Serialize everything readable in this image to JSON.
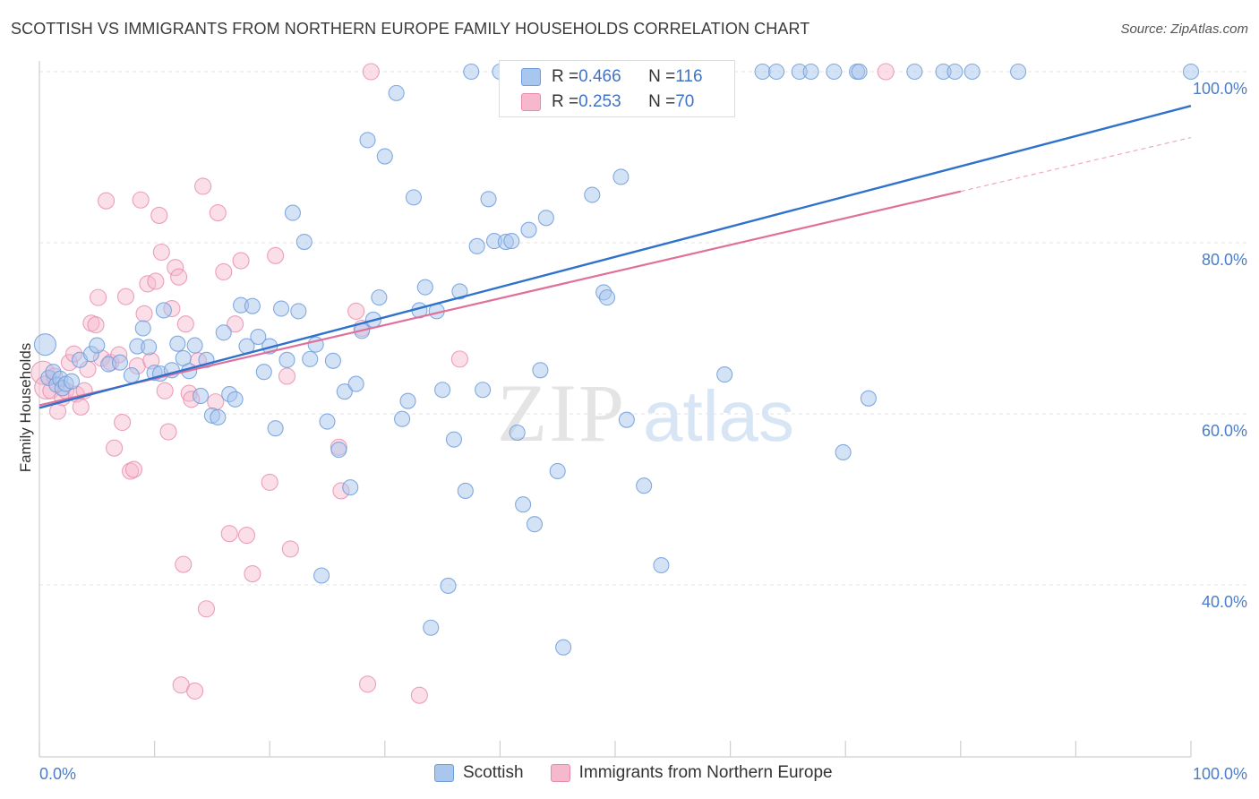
{
  "title": "SCOTTISH VS IMMIGRANTS FROM NORTHERN EUROPE FAMILY HOUSEHOLDS CORRELATION CHART",
  "source": "Source: ZipAtlas.com",
  "watermark": {
    "zip": "ZIP",
    "atlas": "atlas"
  },
  "legend_top": {
    "scottish": {
      "r_label": "R = ",
      "r_value": "0.466",
      "n_label": "N = ",
      "n_value": "116"
    },
    "immigrants": {
      "r_label": "R = ",
      "r_value": "0.253",
      "n_label": "N = ",
      "n_value": "70"
    }
  },
  "legend_bottom": {
    "scottish": "Scottish",
    "immigrants": "Immigrants from Northern Europe"
  },
  "colors": {
    "scottish_fill": "#a9c6ee",
    "scottish_edge": "#6f9ddc",
    "scottish_line": "#2e72cc",
    "immigrants_fill": "#f6b8cd",
    "immigrants_edge": "#e98aab",
    "immigrants_line": "#e0709a",
    "tick_text": "#4a7cc9",
    "grid": "#e3e3e3"
  },
  "chart_data": {
    "type": "scatter",
    "ylabel": "Family Households",
    "xlabel": "",
    "x_tick_labels": [
      "0.0%",
      "100.0%"
    ],
    "y_tick_labels": [
      "40.0%",
      "60.0%",
      "80.0%",
      "100.0%"
    ],
    "y_ticks": [
      40,
      60,
      80,
      100
    ],
    "xlim": [
      0,
      100
    ],
    "ylim": [
      20,
      101
    ],
    "grid": true,
    "legend_placement": "top-center",
    "series": [
      {
        "name": "Scottish",
        "trend": {
          "x": [
            0,
            100
          ],
          "y": [
            60.7,
            96.0
          ]
        },
        "points": [
          [
            0.5,
            68.1
          ],
          [
            0.8,
            64.2
          ],
          [
            1.2,
            64.9
          ],
          [
            1.5,
            63.4
          ],
          [
            1.8,
            64.1
          ],
          [
            2.0,
            63.0
          ],
          [
            2.3,
            63.5
          ],
          [
            2.8,
            63.8
          ],
          [
            3.5,
            66.3
          ],
          [
            4.5,
            67.0
          ],
          [
            5.0,
            68.0
          ],
          [
            6.0,
            65.8
          ],
          [
            7.0,
            66.0
          ],
          [
            8.0,
            64.5
          ],
          [
            8.5,
            67.9
          ],
          [
            9.0,
            70.0
          ],
          [
            9.5,
            67.8
          ],
          [
            10.0,
            64.8
          ],
          [
            10.5,
            64.7
          ],
          [
            10.8,
            72.1
          ],
          [
            11.5,
            65.1
          ],
          [
            12.0,
            68.2
          ],
          [
            12.5,
            66.5
          ],
          [
            13.0,
            65.0
          ],
          [
            13.5,
            68.0
          ],
          [
            14.0,
            62.1
          ],
          [
            14.5,
            66.3
          ],
          [
            15.0,
            59.8
          ],
          [
            15.5,
            59.6
          ],
          [
            16.0,
            69.5
          ],
          [
            16.5,
            62.3
          ],
          [
            17.0,
            61.7
          ],
          [
            17.5,
            72.7
          ],
          [
            18.0,
            67.9
          ],
          [
            18.5,
            72.6
          ],
          [
            19.0,
            69.0
          ],
          [
            19.5,
            64.9
          ],
          [
            20.0,
            67.9
          ],
          [
            20.5,
            58.3
          ],
          [
            21.0,
            72.3
          ],
          [
            21.5,
            66.3
          ],
          [
            22.0,
            83.5
          ],
          [
            22.5,
            72.0
          ],
          [
            23.0,
            80.1
          ],
          [
            23.5,
            66.4
          ],
          [
            24.0,
            68.1
          ],
          [
            24.5,
            41.1
          ],
          [
            25.0,
            59.1
          ],
          [
            25.5,
            66.2
          ],
          [
            26.0,
            55.8
          ],
          [
            26.5,
            62.6
          ],
          [
            27.0,
            51.4
          ],
          [
            27.5,
            63.5
          ],
          [
            28.0,
            69.7
          ],
          [
            28.5,
            92.0
          ],
          [
            29.0,
            71.0
          ],
          [
            29.5,
            73.6
          ],
          [
            30.0,
            90.1
          ],
          [
            31.0,
            97.5
          ],
          [
            31.5,
            59.4
          ],
          [
            32.0,
            61.5
          ],
          [
            32.5,
            85.3
          ],
          [
            33.0,
            72.1
          ],
          [
            33.5,
            74.8
          ],
          [
            34.0,
            35.0
          ],
          [
            34.5,
            72.0
          ],
          [
            35.0,
            62.8
          ],
          [
            35.5,
            39.9
          ],
          [
            36.0,
            57.0
          ],
          [
            36.5,
            74.3
          ],
          [
            37.0,
            51.0
          ],
          [
            37.5,
            100.0
          ],
          [
            38.0,
            79.6
          ],
          [
            38.5,
            62.8
          ],
          [
            39.0,
            85.1
          ],
          [
            39.5,
            80.2
          ],
          [
            40.0,
            100.0
          ],
          [
            40.5,
            80.1
          ],
          [
            41.0,
            80.2
          ],
          [
            41.5,
            57.8
          ],
          [
            42.0,
            49.4
          ],
          [
            42.5,
            81.5
          ],
          [
            43.0,
            47.1
          ],
          [
            43.5,
            65.1
          ],
          [
            44.0,
            82.9
          ],
          [
            45.0,
            53.3
          ],
          [
            45.5,
            32.7
          ],
          [
            47.0,
            96.0
          ],
          [
            47.5,
            100.0
          ],
          [
            48.0,
            85.6
          ],
          [
            49.0,
            74.2
          ],
          [
            49.3,
            73.6
          ],
          [
            50.5,
            87.7
          ],
          [
            51.0,
            59.3
          ],
          [
            52.5,
            51.6
          ],
          [
            53.0,
            100.0
          ],
          [
            54.0,
            42.3
          ],
          [
            55.5,
            100.0
          ],
          [
            57.0,
            100.0
          ],
          [
            59.5,
            64.6
          ],
          [
            62.8,
            100.0
          ],
          [
            64.0,
            100.0
          ],
          [
            66.0,
            100.0
          ],
          [
            67.0,
            100.0
          ],
          [
            69.0,
            100.0
          ],
          [
            69.8,
            55.5
          ],
          [
            71.0,
            100.0
          ],
          [
            71.2,
            100.0
          ],
          [
            72.0,
            61.8
          ],
          [
            76.0,
            100.0
          ],
          [
            78.5,
            100.0
          ],
          [
            79.5,
            100.0
          ],
          [
            81.0,
            100.0
          ],
          [
            85.0,
            100.0
          ],
          [
            100.0,
            100.0
          ]
        ]
      },
      {
        "name": "Immigrants from Northern Europe",
        "trend": {
          "x": [
            0,
            80
          ],
          "y": [
            61.0,
            86.0
          ]
        },
        "trend_ext": {
          "x": [
            80,
            100
          ],
          "y": [
            86.0,
            92.3
          ]
        },
        "points": [
          [
            0.3,
            64.8
          ],
          [
            0.6,
            63.1
          ],
          [
            1.0,
            62.7
          ],
          [
            1.3,
            64.4
          ],
          [
            1.6,
            60.3
          ],
          [
            2.0,
            61.9
          ],
          [
            2.3,
            62.7
          ],
          [
            2.6,
            66.0
          ],
          [
            3.0,
            67.0
          ],
          [
            3.2,
            62.3
          ],
          [
            3.6,
            60.8
          ],
          [
            3.9,
            62.7
          ],
          [
            4.2,
            65.2
          ],
          [
            4.5,
            70.6
          ],
          [
            4.9,
            70.4
          ],
          [
            5.1,
            73.6
          ],
          [
            5.4,
            66.5
          ],
          [
            5.8,
            84.9
          ],
          [
            6.2,
            66.0
          ],
          [
            6.5,
            56.0
          ],
          [
            6.9,
            66.9
          ],
          [
            7.2,
            59.0
          ],
          [
            7.5,
            73.7
          ],
          [
            7.9,
            53.3
          ],
          [
            8.2,
            53.5
          ],
          [
            8.5,
            65.6
          ],
          [
            8.8,
            85.0
          ],
          [
            9.1,
            71.7
          ],
          [
            9.4,
            75.2
          ],
          [
            9.7,
            66.2
          ],
          [
            10.1,
            75.5
          ],
          [
            10.4,
            83.2
          ],
          [
            10.6,
            78.9
          ],
          [
            10.9,
            62.7
          ],
          [
            11.2,
            57.9
          ],
          [
            11.5,
            72.3
          ],
          [
            11.8,
            77.1
          ],
          [
            12.1,
            76.0
          ],
          [
            12.3,
            28.3
          ],
          [
            12.5,
            42.4
          ],
          [
            12.7,
            70.5
          ],
          [
            13.0,
            62.4
          ],
          [
            13.2,
            61.7
          ],
          [
            13.5,
            27.6
          ],
          [
            13.8,
            66.2
          ],
          [
            14.2,
            86.6
          ],
          [
            14.5,
            37.2
          ],
          [
            15.3,
            61.4
          ],
          [
            15.5,
            83.5
          ],
          [
            16.0,
            76.6
          ],
          [
            16.5,
            46.0
          ],
          [
            17.0,
            70.5
          ],
          [
            17.5,
            77.9
          ],
          [
            18.0,
            45.8
          ],
          [
            18.5,
            41.3
          ],
          [
            20.0,
            52.0
          ],
          [
            20.5,
            78.5
          ],
          [
            21.5,
            64.4
          ],
          [
            21.8,
            44.2
          ],
          [
            26.0,
            56.1
          ],
          [
            26.2,
            51.0
          ],
          [
            27.5,
            72.0
          ],
          [
            28.0,
            70.0
          ],
          [
            28.5,
            28.4
          ],
          [
            28.8,
            100.0
          ],
          [
            33.0,
            27.1
          ],
          [
            36.5,
            66.4
          ],
          [
            55.0,
            100.0
          ],
          [
            73.5,
            100.0
          ]
        ]
      }
    ]
  }
}
